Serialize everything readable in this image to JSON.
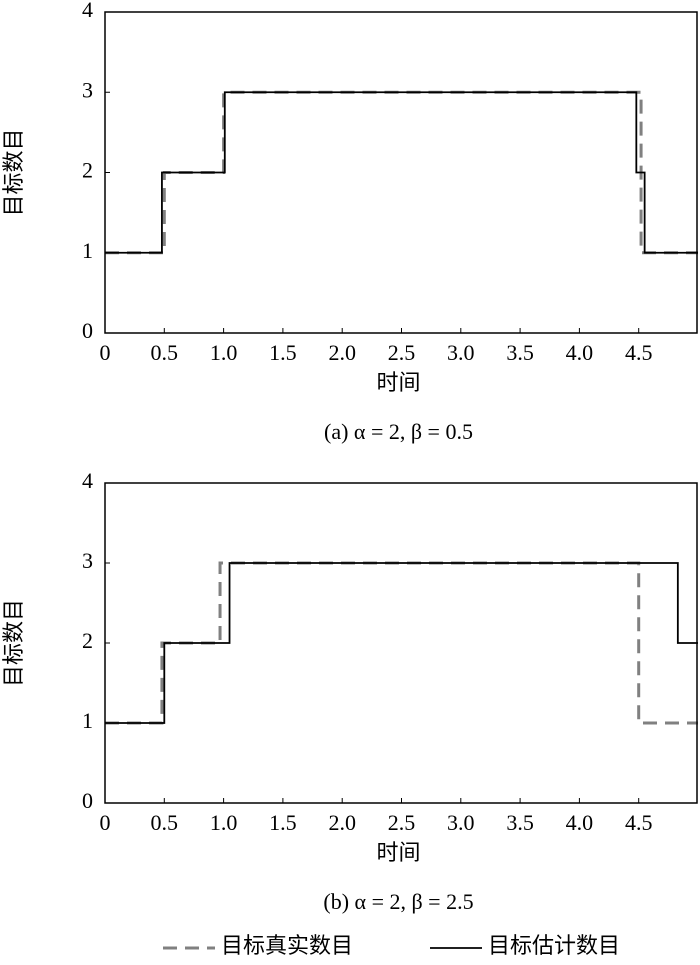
{
  "chart_data": [
    {
      "type": "line",
      "xlabel": "时间",
      "ylabel": "目标数目",
      "caption": "(a) α = 2, β = 0.5",
      "xlim": [
        0,
        5
      ],
      "ylim": [
        0,
        4
      ],
      "xticks": [
        0,
        0.5,
        {
          "value": 1,
          "label": "1.0"
        },
        1.5,
        {
          "value": 2,
          "label": "2.0"
        },
        2.5,
        {
          "value": 3,
          "label": "3.0"
        },
        3.5,
        {
          "value": 4,
          "label": "4.0"
        },
        4.5
      ],
      "yticks": [
        0,
        1,
        2,
        3,
        4
      ],
      "series": [
        {
          "color": "#808080",
          "style": "dashed",
          "x": [
            0,
            0.5,
            0.5,
            1,
            1,
            4.52,
            4.52,
            5
          ],
          "values": [
            1,
            1,
            2,
            2,
            3,
            3,
            1,
            1
          ]
        },
        {
          "color": "#000000",
          "style": "solid",
          "x": [
            0,
            0.48,
            0.48,
            1.01,
            1.01,
            4.48,
            4.48,
            4.55,
            4.55,
            5
          ],
          "values": [
            1,
            1,
            2,
            2,
            3,
            3,
            2,
            2,
            1,
            1
          ]
        }
      ]
    },
    {
      "type": "line",
      "xlabel": "时间",
      "ylabel": "目标数目",
      "caption": "(b) α = 2, β = 2.5",
      "xlim": [
        0,
        5
      ],
      "ylim": [
        0,
        4
      ],
      "xticks": [
        0,
        0.5,
        {
          "value": 1,
          "label": "1.0"
        },
        1.5,
        {
          "value": 2,
          "label": "2.0"
        },
        2.5,
        {
          "value": 3,
          "label": "3.0"
        },
        3.5,
        {
          "value": 4,
          "label": "4.0"
        },
        4.5
      ],
      "yticks": [
        0,
        1,
        2,
        3,
        4
      ],
      "series": [
        {
          "name": "目标真实数目",
          "color": "#808080",
          "style": "dashed",
          "x": [
            0,
            0.48,
            0.48,
            0.97,
            0.97,
            4.5,
            4.5,
            5
          ],
          "values": [
            1,
            1,
            2,
            2,
            3,
            3,
            1,
            1
          ]
        },
        {
          "name": "目标估计数目",
          "color": "#000000",
          "style": "solid",
          "x": [
            0,
            0.5,
            0.5,
            1.05,
            1.05,
            4.83,
            4.83,
            5
          ],
          "values": [
            1,
            1,
            2,
            2,
            3,
            3,
            2,
            2
          ]
        }
      ]
    }
  ]
}
